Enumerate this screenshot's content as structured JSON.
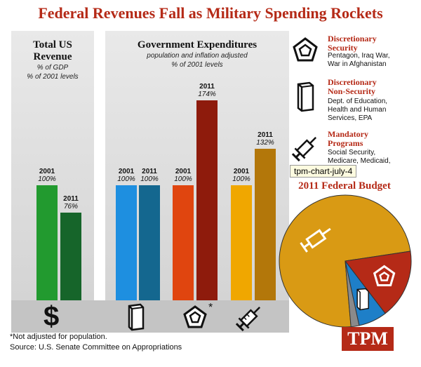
{
  "title": "Federal Revenues Fall as Military Spending Rockets",
  "revenue_panel": {
    "heading_line1": "Total US",
    "heading_line2": "Revenue",
    "sub_line1": "% of GDP",
    "sub_line2": "% of 2001 levels"
  },
  "expenditure_panel": {
    "heading": "Government Expenditures",
    "sub_line1": "population and inflation adjusted",
    "sub_line2": "% of 2001 levels"
  },
  "chart_data": {
    "type": "bar",
    "unit": "% of 2001 levels",
    "ylim": [
      0,
      180
    ],
    "groups": [
      {
        "name": "Total US Revenue",
        "icon": "dollar-sign-icon",
        "bars": [
          {
            "year": "2001",
            "value": 100,
            "label": "100%",
            "color": "#229a2f"
          },
          {
            "year": "2011",
            "value": 76,
            "label": "76%",
            "color": "#16652a"
          }
        ]
      },
      {
        "name": "Discretionary Non-Security",
        "icon": "book-icon",
        "bars": [
          {
            "year": "2001",
            "value": 100,
            "label": "100%",
            "color": "#1e8fe0"
          },
          {
            "year": "2011",
            "value": 100,
            "label": "100%",
            "color": "#14678f"
          }
        ]
      },
      {
        "name": "Discretionary Security",
        "icon": "pentagon-icon",
        "bars": [
          {
            "year": "2001",
            "value": 100,
            "label": "100%",
            "color": "#e0450f"
          },
          {
            "year": "2011",
            "value": 174,
            "label": "174%",
            "color": "#8e1b0c"
          }
        ]
      },
      {
        "name": "Mandatory Programs",
        "icon": "syringe-icon",
        "bars": [
          {
            "year": "2001",
            "value": 100,
            "label": "100%",
            "color": "#f0a700"
          },
          {
            "year": "2011",
            "value": 132,
            "label": "132%",
            "color": "#b3770a"
          }
        ]
      }
    ],
    "pie": {
      "title": "2011 Federal Budget",
      "slices": [
        {
          "name": "Mandatory Programs",
          "value": 74,
          "color": "#d99a14",
          "icon": "syringe-icon"
        },
        {
          "name": "Discretionary Security",
          "value": 17,
          "color": "#b52a17",
          "icon": "pentagon-icon"
        },
        {
          "name": "Discretionary Non-Security",
          "value": 7,
          "color": "#1e7fc8",
          "icon": "book-icon"
        },
        {
          "name": "Other",
          "value": 2,
          "color": "#8a8a8a"
        }
      ]
    }
  },
  "legend": [
    {
      "title": "Discretionary\nSecurity",
      "desc": "Pentagon, Iraq War,\nWar in Afghanistan"
    },
    {
      "title": "Discretionary\nNon-Security",
      "desc": "Dept. of Education,\nHealth and Human\nServices, EPA"
    },
    {
      "title": "Mandatory\nPrograms",
      "desc": "Social Security,\nMedicare, Medicaid,"
    }
  ],
  "icon_asterisk": "*",
  "dollar_glyph": "$",
  "tooltip": "tpm-chart-july-4",
  "footnote": "*Not adjusted for population.",
  "source": "Source: U.S. Senate Committee on Appropriations",
  "logo": "TPM",
  "colors": {
    "accent": "#b52a17"
  }
}
